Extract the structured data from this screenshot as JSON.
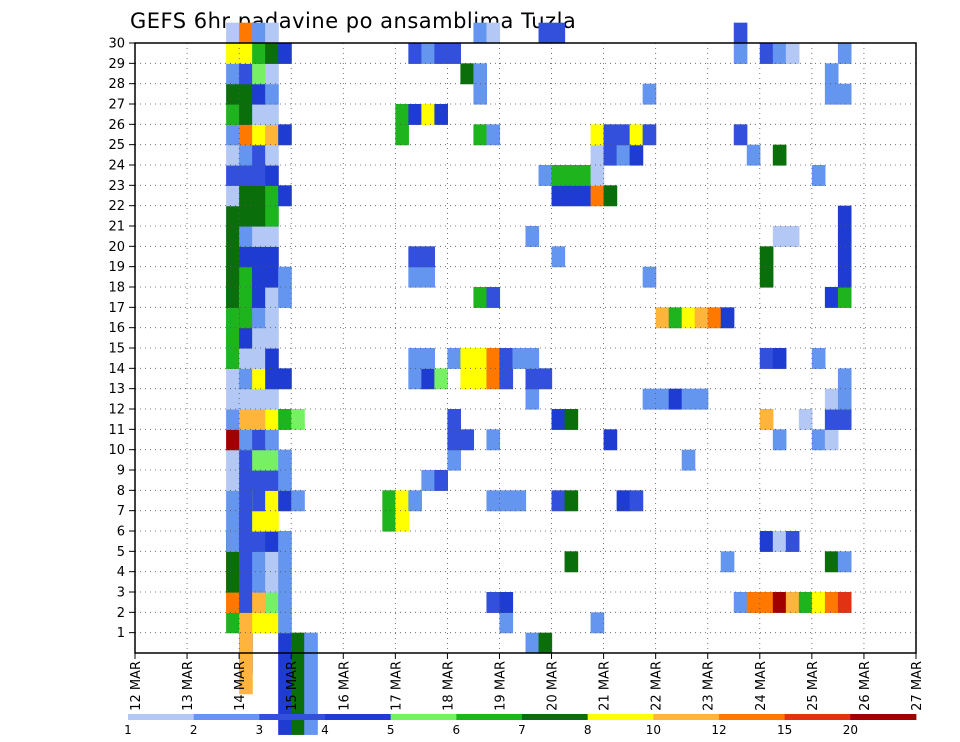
{
  "chart_data": {
    "type": "heatmap",
    "title": "GEFS 6hr padavine po ansamblima Tuzla",
    "x_tick_labels": [
      "12 MAR",
      "13 MAR",
      "14 MAR",
      "15 MAR",
      "16 MAR",
      "17 MAR",
      "18 MAR",
      "19 MAR",
      "20 MAR",
      "21 MAR",
      "22 MAR",
      "23 MAR",
      "24 MAR",
      "25 MAR",
      "26 MAR",
      "27 MAR"
    ],
    "x_range_steps": [
      0,
      60
    ],
    "steps_per_day": 4,
    "y_tick_labels": [
      "1",
      "2",
      "3",
      "4",
      "5",
      "6",
      "7",
      "8",
      "9",
      "10",
      "11",
      "12",
      "13",
      "14",
      "15",
      "16",
      "17",
      "18",
      "19",
      "20",
      "21",
      "22",
      "23",
      "24",
      "25",
      "26",
      "27",
      "28",
      "29",
      "30"
    ],
    "y_range": [
      0,
      30
    ],
    "grid": "dotted",
    "legend": "bottom",
    "colorbar_labels": [
      "1",
      "2",
      "3",
      "4",
      "5",
      "6",
      "7",
      "8",
      "10",
      "12",
      "15",
      "20"
    ],
    "colorbar_colors": [
      "#b4c8f5",
      "#6496f0",
      "#3250dc",
      "#1e3cd2",
      "#78f064",
      "#1eb41e",
      "#0a6e0a",
      "#ffff00",
      "#ffb43c",
      "#ff7800",
      "#e13214",
      "#a00000"
    ],
    "values": [
      [
        7,
        1,
        0,
        5
      ],
      [
        7,
        2,
        0,
        8
      ],
      [
        7,
        3,
        0,
        8
      ],
      [
        7,
        4,
        2,
        9
      ],
      [
        7,
        5,
        2,
        6
      ],
      [
        7,
        6,
        1,
        1
      ],
      [
        7,
        7,
        0,
        1
      ],
      [
        7,
        8,
        0,
        0
      ],
      [
        7,
        9,
        0,
        0
      ],
      [
        7,
        10,
        0,
        11
      ],
      [
        7,
        11,
        0,
        1
      ],
      [
        7,
        12,
        0,
        0
      ],
      [
        7,
        13,
        0,
        0
      ],
      [
        7,
        14,
        0,
        0
      ],
      [
        7,
        15,
        1,
        5
      ],
      [
        7,
        16,
        0,
        0
      ],
      [
        7,
        17,
        2,
        5
      ],
      [
        7,
        18,
        2,
        5
      ],
      [
        7,
        19,
        0,
        4
      ],
      [
        7,
        20,
        0,
        0
      ],
      [
        7,
        21,
        4,
        6
      ],
      [
        7,
        22,
        0,
        0
      ],
      [
        7,
        23,
        0,
        2
      ],
      [
        7,
        24,
        0,
        0
      ],
      [
        7,
        25,
        0,
        1
      ],
      [
        7,
        26,
        0,
        5
      ],
      [
        7,
        27,
        0,
        6
      ],
      [
        7,
        28,
        0,
        1
      ],
      [
        7,
        29,
        0,
        7
      ],
      [
        7,
        30,
        0,
        0
      ],
      [
        8,
        1,
        2,
        2
      ],
      [
        8,
        2,
        4,
        8
      ],
      [
        8,
        3,
        0,
        2
      ],
      [
        8,
        4,
        0,
        5
      ],
      [
        8,
        5,
        3,
        2
      ],
      [
        8,
        6,
        2,
        2
      ],
      [
        8,
        7,
        0,
        4
      ],
      [
        8,
        8,
        0,
        4
      ],
      [
        8,
        9,
        3,
        2
      ],
      [
        8,
        10,
        0,
        1
      ],
      [
        8,
        11,
        0,
        8
      ],
      [
        8,
        12,
        0,
        0
      ],
      [
        8,
        13,
        0,
        1
      ],
      [
        8,
        14,
        0,
        0
      ],
      [
        8,
        15,
        0,
        3
      ],
      [
        8,
        16,
        0,
        11
      ],
      [
        8,
        17,
        0,
        0
      ],
      [
        8,
        18,
        2,
        5
      ],
      [
        8,
        19,
        0,
        3
      ],
      [
        8,
        20,
        0,
        1
      ],
      [
        8,
        21,
        0,
        6
      ],
      [
        8,
        22,
        0,
        6
      ],
      [
        8,
        23,
        0,
        2
      ],
      [
        8,
        24,
        0,
        1
      ],
      [
        8,
        25,
        0,
        9
      ],
      [
        8,
        26,
        0,
        6
      ],
      [
        8,
        27,
        0,
        6
      ],
      [
        8,
        28,
        0,
        2
      ],
      [
        8,
        29,
        0,
        7
      ],
      [
        8,
        30,
        0,
        9
      ],
      [
        9,
        1,
        0,
        7
      ],
      [
        9,
        2,
        0,
        8
      ],
      [
        9,
        3,
        0,
        1
      ],
      [
        9,
        4,
        0,
        1
      ],
      [
        9,
        5,
        0,
        2
      ],
      [
        9,
        6,
        0,
        2
      ],
      [
        9,
        7,
        1,
        7
      ],
      [
        9,
        8,
        1,
        2
      ],
      [
        9,
        9,
        0,
        4
      ],
      [
        9,
        10,
        0,
        2
      ],
      [
        9,
        11,
        0,
        8
      ],
      [
        9,
        12,
        0,
        0
      ],
      [
        9,
        13,
        0,
        7
      ],
      [
        9,
        14,
        0,
        0
      ],
      [
        9,
        15,
        0,
        0
      ],
      [
        9,
        16,
        0,
        1
      ],
      [
        9,
        17,
        0,
        6
      ],
      [
        9,
        18,
        0,
        6
      ],
      [
        9,
        19,
        2,
        3
      ],
      [
        9,
        20,
        0,
        0
      ],
      [
        9,
        21,
        0,
        6
      ],
      [
        9,
        22,
        0,
        6
      ],
      [
        9,
        23,
        0,
        2
      ],
      [
        9,
        24,
        0,
        2
      ],
      [
        9,
        25,
        0,
        7
      ],
      [
        9,
        26,
        0,
        0
      ],
      [
        9,
        27,
        0,
        3
      ],
      [
        9,
        28,
        0,
        4
      ],
      [
        9,
        29,
        0,
        5
      ],
      [
        9,
        30,
        0,
        1
      ],
      [
        10,
        1,
        0,
        7
      ],
      [
        10,
        2,
        0,
        4
      ],
      [
        10,
        3,
        0,
        0
      ],
      [
        10,
        4,
        0,
        0
      ],
      [
        10,
        5,
        0,
        3
      ],
      [
        10,
        6,
        0,
        7
      ],
      [
        10,
        7,
        0,
        7
      ],
      [
        10,
        8,
        0,
        2
      ],
      [
        10,
        9,
        0,
        4
      ],
      [
        10,
        10,
        0,
        1
      ],
      [
        10,
        11,
        0,
        7
      ],
      [
        10,
        12,
        0,
        0
      ],
      [
        10,
        13,
        0,
        3
      ],
      [
        10,
        14,
        0,
        3
      ],
      [
        10,
        15,
        0,
        0
      ],
      [
        10,
        16,
        0,
        0
      ],
      [
        10,
        17,
        0,
        0
      ],
      [
        10,
        18,
        0,
        3
      ],
      [
        10,
        19,
        0,
        3
      ],
      [
        10,
        20,
        0,
        0
      ],
      [
        10,
        21,
        0,
        5
      ],
      [
        10,
        22,
        0,
        5
      ],
      [
        10,
        23,
        0,
        3
      ],
      [
        10,
        24,
        0,
        0
      ],
      [
        10,
        25,
        0,
        8
      ],
      [
        10,
        26,
        0,
        0
      ],
      [
        10,
        27,
        0,
        1
      ],
      [
        10,
        28,
        0,
        0
      ],
      [
        10,
        29,
        0,
        6
      ],
      [
        10,
        30,
        0,
        0
      ],
      [
        11,
        0,
        4,
        3
      ],
      [
        11,
        5,
        4,
        1
      ],
      [
        11,
        7,
        0,
        3
      ],
      [
        11,
        8,
        0,
        1
      ],
      [
        11,
        9,
        0,
        1
      ],
      [
        11,
        11,
        0,
        5
      ],
      [
        11,
        13,
        0,
        3
      ],
      [
        11,
        17,
        0,
        1
      ],
      [
        11,
        18,
        0,
        1
      ],
      [
        11,
        22,
        0,
        3
      ],
      [
        11,
        25,
        0,
        3
      ],
      [
        11,
        29,
        0,
        3
      ],
      [
        12,
        0,
        4,
        6
      ],
      [
        12,
        7,
        0,
        1
      ],
      [
        12,
        11,
        0,
        4
      ],
      [
        13,
        0,
        4,
        1
      ],
      [
        19,
        7,
        1,
        5
      ],
      [
        20,
        7,
        1,
        7
      ],
      [
        20,
        26,
        1,
        5
      ],
      [
        21,
        7,
        0,
        1
      ],
      [
        21,
        13,
        0,
        1
      ],
      [
        21,
        14,
        0,
        1
      ],
      [
        21,
        18,
        0,
        1
      ],
      [
        21,
        19,
        0,
        2
      ],
      [
        21,
        26,
        0,
        3
      ],
      [
        21,
        29,
        0,
        2
      ],
      [
        22,
        8,
        0,
        1
      ],
      [
        22,
        13,
        0,
        3
      ],
      [
        22,
        14,
        0,
        1
      ],
      [
        22,
        18,
        0,
        1
      ],
      [
        22,
        19,
        0,
        2
      ],
      [
        22,
        26,
        0,
        7
      ],
      [
        22,
        29,
        0,
        1
      ],
      [
        23,
        8,
        0,
        2
      ],
      [
        23,
        13,
        0,
        4
      ],
      [
        23,
        26,
        0,
        3
      ],
      [
        23,
        29,
        0,
        2
      ],
      [
        24,
        9,
        0,
        1
      ],
      [
        24,
        10,
        0,
        2
      ],
      [
        24,
        11,
        0,
        2
      ],
      [
        24,
        14,
        0,
        1
      ],
      [
        24,
        29,
        0,
        2
      ],
      [
        25,
        10,
        0,
        2
      ],
      [
        25,
        13,
        0,
        7
      ],
      [
        25,
        14,
        0,
        7
      ],
      [
        25,
        28,
        0,
        6
      ],
      [
        26,
        13,
        0,
        7
      ],
      [
        26,
        14,
        0,
        7
      ],
      [
        26,
        17,
        0,
        5
      ],
      [
        26,
        25,
        0,
        5
      ],
      [
        26,
        27,
        0,
        1
      ],
      [
        26,
        28,
        0,
        1
      ],
      [
        26,
        30,
        0,
        1
      ],
      [
        27,
        2,
        0,
        2
      ],
      [
        27,
        7,
        0,
        1
      ],
      [
        27,
        10,
        0,
        1
      ],
      [
        27,
        13,
        0,
        9
      ],
      [
        27,
        14,
        0,
        9
      ],
      [
        27,
        17,
        0,
        2
      ],
      [
        27,
        25,
        0,
        1
      ],
      [
        27,
        30,
        0,
        0
      ],
      [
        28,
        1,
        0,
        1
      ],
      [
        28,
        2,
        0,
        3
      ],
      [
        28,
        7,
        0,
        1
      ],
      [
        28,
        13,
        0,
        2
      ],
      [
        28,
        14,
        0,
        2
      ],
      [
        29,
        7,
        0,
        1
      ],
      [
        29,
        14,
        0,
        1
      ],
      [
        30,
        0,
        0,
        1
      ],
      [
        30,
        12,
        0,
        1
      ],
      [
        30,
        13,
        0,
        2
      ],
      [
        30,
        14,
        0,
        1
      ],
      [
        30,
        20,
        0,
        1
      ],
      [
        31,
        0,
        0,
        6
      ],
      [
        31,
        13,
        0,
        2
      ],
      [
        31,
        23,
        0,
        1
      ],
      [
        31,
        30,
        0,
        2
      ],
      [
        32,
        7,
        0,
        2
      ],
      [
        32,
        11,
        0,
        3
      ],
      [
        32,
        19,
        0,
        1
      ],
      [
        32,
        22,
        0,
        3
      ],
      [
        32,
        23,
        0,
        5
      ],
      [
        32,
        30,
        0,
        2
      ],
      [
        33,
        4,
        0,
        6
      ],
      [
        33,
        7,
        0,
        6
      ],
      [
        33,
        11,
        0,
        6
      ],
      [
        33,
        22,
        0,
        3
      ],
      [
        33,
        23,
        0,
        5
      ],
      [
        34,
        22,
        0,
        3
      ],
      [
        34,
        23,
        0,
        5
      ],
      [
        35,
        1,
        0,
        1
      ],
      [
        35,
        22,
        0,
        9
      ],
      [
        35,
        23,
        0,
        0
      ],
      [
        35,
        24,
        0,
        0
      ],
      [
        35,
        25,
        0,
        7
      ],
      [
        36,
        10,
        0,
        3
      ],
      [
        36,
        22,
        0,
        6
      ],
      [
        36,
        24,
        0,
        2
      ],
      [
        36,
        25,
        0,
        2
      ],
      [
        37,
        7,
        0,
        3
      ],
      [
        37,
        24,
        0,
        1
      ],
      [
        37,
        25,
        0,
        2
      ],
      [
        38,
        7,
        0,
        2
      ],
      [
        38,
        24,
        0,
        3
      ],
      [
        38,
        25,
        0,
        7
      ],
      [
        39,
        12,
        0,
        1
      ],
      [
        39,
        18,
        0,
        1
      ],
      [
        39,
        25,
        0,
        2
      ],
      [
        39,
        27,
        0,
        1
      ],
      [
        40,
        12,
        0,
        1
      ],
      [
        40,
        16,
        0,
        8
      ],
      [
        41,
        12,
        0,
        3
      ],
      [
        41,
        16,
        0,
        5
      ],
      [
        42,
        9,
        0,
        1
      ],
      [
        42,
        12,
        0,
        1
      ],
      [
        42,
        16,
        0,
        7
      ],
      [
        43,
        12,
        0,
        1
      ],
      [
        43,
        16,
        0,
        8
      ],
      [
        44,
        16,
        0,
        9
      ],
      [
        45,
        4,
        0,
        1
      ],
      [
        45,
        16,
        0,
        3
      ],
      [
        46,
        2,
        0,
        1
      ],
      [
        46,
        25,
        0,
        2
      ],
      [
        46,
        29,
        0,
        1
      ],
      [
        46,
        30,
        0,
        2
      ],
      [
        47,
        2,
        0,
        9
      ],
      [
        47,
        24,
        0,
        1
      ],
      [
        48,
        2,
        0,
        9
      ],
      [
        48,
        5,
        0,
        3
      ],
      [
        48,
        11,
        0,
        8
      ],
      [
        48,
        14,
        0,
        2
      ],
      [
        48,
        18,
        0,
        6
      ],
      [
        48,
        19,
        0,
        6
      ],
      [
        48,
        29,
        0,
        2
      ],
      [
        49,
        2,
        0,
        11
      ],
      [
        49,
        5,
        0,
        0
      ],
      [
        49,
        10,
        0,
        1
      ],
      [
        49,
        14,
        0,
        3
      ],
      [
        49,
        20,
        0,
        0
      ],
      [
        49,
        24,
        0,
        6
      ],
      [
        49,
        29,
        0,
        1
      ],
      [
        50,
        2,
        0,
        8
      ],
      [
        50,
        5,
        0,
        2
      ],
      [
        50,
        20,
        0,
        0
      ],
      [
        50,
        29,
        0,
        0
      ],
      [
        51,
        2,
        0,
        5
      ],
      [
        51,
        11,
        0,
        0
      ],
      [
        52,
        2,
        0,
        7
      ],
      [
        52,
        10,
        0,
        1
      ],
      [
        52,
        14,
        0,
        1
      ],
      [
        52,
        23,
        0,
        1
      ],
      [
        53,
        2,
        0,
        9
      ],
      [
        53,
        4,
        0,
        6
      ],
      [
        53,
        10,
        0,
        0
      ],
      [
        53,
        11,
        0,
        2
      ],
      [
        53,
        12,
        0,
        0
      ],
      [
        53,
        17,
        0,
        3
      ],
      [
        53,
        27,
        0,
        1
      ],
      [
        53,
        28,
        0,
        1
      ],
      [
        54,
        2,
        0,
        10
      ],
      [
        54,
        4,
        0,
        1
      ],
      [
        54,
        11,
        0,
        2
      ],
      [
        54,
        12,
        0,
        1
      ],
      [
        54,
        13,
        0,
        1
      ],
      [
        54,
        17,
        0,
        5
      ],
      [
        54,
        18,
        0,
        3
      ],
      [
        54,
        19,
        0,
        3
      ],
      [
        54,
        20,
        0,
        3
      ],
      [
        54,
        21,
        0,
        3
      ],
      [
        54,
        27,
        0,
        1
      ],
      [
        54,
        29,
        0,
        1
      ]
    ]
  }
}
